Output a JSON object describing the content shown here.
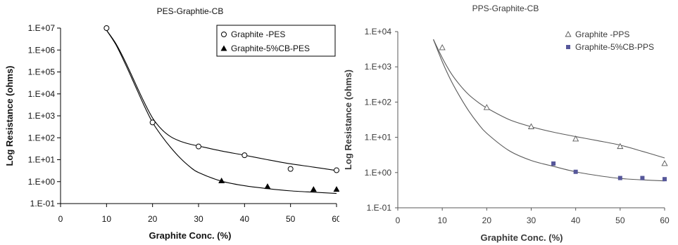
{
  "chart_data": [
    {
      "type": "scatter",
      "title": "PES-Graphtie-CB",
      "xlabel": "Graphite Conc. (%)",
      "ylabel": "Log Resistance (ohms)",
      "xlim": [
        0,
        60
      ],
      "ylim": [
        0.1,
        10000000
      ],
      "yscale": "log",
      "x_ticks": [
        "0",
        "10",
        "20",
        "30",
        "40",
        "50",
        "60"
      ],
      "y_ticks": [
        "1.E+07",
        "1.E+06",
        "1.E+05",
        "1.E+04",
        "1.E+03",
        "1.E+02",
        "1.E+01",
        "1.E+00",
        "1.E-01"
      ],
      "grid": false,
      "legend_position": "top-right",
      "series": [
        {
          "name": "Graphite -PES",
          "marker": "open-circle",
          "x": [
            10,
            20,
            30,
            40,
            50,
            60
          ],
          "y": [
            10000000,
            500,
            40,
            16,
            3.8,
            3.3
          ],
          "fit": [
            [
              10,
              8000000
            ],
            [
              12,
              2000000
            ],
            [
              14,
              320000
            ],
            [
              16,
              40000
            ],
            [
              18,
              5000
            ],
            [
              20,
              800
            ],
            [
              22,
              240
            ],
            [
              24,
              110
            ],
            [
              26,
              70
            ],
            [
              28,
              52
            ],
            [
              30,
              42
            ],
            [
              35,
              25
            ],
            [
              40,
              16
            ],
            [
              45,
              10
            ],
            [
              50,
              6.5
            ],
            [
              55,
              4.6
            ],
            [
              60,
              3.2
            ]
          ]
        },
        {
          "name": "Graphite-5%CB-PES",
          "marker": "filled-triangle",
          "x": [
            35,
            45,
            55,
            60
          ],
          "y": [
            1.1,
            0.6,
            0.45,
            0.45
          ],
          "fit": [
            [
              10,
              8000000
            ],
            [
              12,
              1800000
            ],
            [
              14,
              250000
            ],
            [
              16,
              30000
            ],
            [
              18,
              3500
            ],
            [
              20,
              500
            ],
            [
              22,
              120
            ],
            [
              24,
              35
            ],
            [
              26,
              12
            ],
            [
              28,
              5
            ],
            [
              30,
              2.6
            ],
            [
              35,
              1.05
            ],
            [
              40,
              0.65
            ],
            [
              45,
              0.48
            ],
            [
              50,
              0.38
            ],
            [
              55,
              0.33
            ],
            [
              60,
              0.29
            ]
          ]
        }
      ]
    },
    {
      "type": "scatter",
      "title": "PPS-Graphite-CB",
      "xlabel": "Graphite Conc. (%)",
      "ylabel": "Log Resistance (ohms)",
      "xlim": [
        0,
        60
      ],
      "ylim": [
        0.1,
        10000
      ],
      "yscale": "log",
      "x_ticks": [
        "0",
        "10",
        "20",
        "30",
        "40",
        "50",
        "60"
      ],
      "y_ticks": [
        "1.E+04",
        "1.E+03",
        "1.E+02",
        "1.E+01",
        "1.E+00",
        "1.E-01"
      ],
      "grid": false,
      "legend_position": "top-right",
      "series": [
        {
          "name": "Graphite -PPS",
          "marker": "open-triangle",
          "x": [
            10,
            20,
            30,
            40,
            50,
            60
          ],
          "y": [
            3500,
            70,
            20,
            9,
            5.5,
            1.8
          ],
          "fit": [
            [
              8,
              6000
            ],
            [
              10,
              1800
            ],
            [
              12,
              650
            ],
            [
              14,
              300
            ],
            [
              16,
              160
            ],
            [
              18,
              100
            ],
            [
              20,
              68
            ],
            [
              25,
              32
            ],
            [
              30,
              20
            ],
            [
              35,
              14
            ],
            [
              40,
              10.5
            ],
            [
              45,
              8
            ],
            [
              50,
              6
            ],
            [
              55,
              4
            ],
            [
              60,
              2.6
            ]
          ]
        },
        {
          "name": "Graphite-5%CB-PPS",
          "marker": "filled-square",
          "x": [
            35,
            40,
            50,
            55,
            60
          ],
          "y": [
            1.8,
            1.05,
            0.7,
            0.7,
            0.65
          ],
          "fit": [
            [
              8,
              6000
            ],
            [
              10,
              1400
            ],
            [
              12,
              400
            ],
            [
              14,
              140
            ],
            [
              16,
              55
            ],
            [
              18,
              25
            ],
            [
              20,
              13
            ],
            [
              25,
              4.2
            ],
            [
              30,
              2.2
            ],
            [
              35,
              1.5
            ],
            [
              40,
              1.05
            ],
            [
              45,
              0.82
            ],
            [
              50,
              0.68
            ],
            [
              55,
              0.62
            ],
            [
              60,
              0.58
            ]
          ]
        }
      ]
    }
  ],
  "colors": {
    "axis": "#000000",
    "text": "#111111",
    "right_text": "#3a3a3a",
    "right_axis": "#5a5a5a",
    "cb_marker_right": "#56579a"
  }
}
